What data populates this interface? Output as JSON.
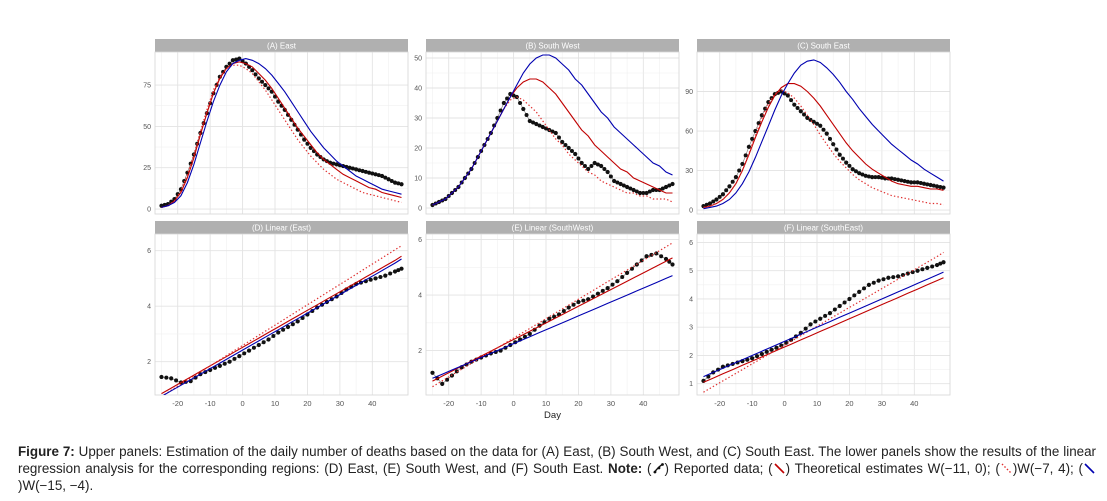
{
  "figure": {
    "x_axis_title": "Day",
    "x_ticks": [
      -20,
      -10,
      0,
      10,
      20,
      30,
      40
    ],
    "colors": {
      "observed": "#111111",
      "w_a": "#c00000",
      "w_b": "#e03030",
      "w_c": "#0000b0",
      "strip": "#b0b0b0",
      "grid": "#e3e3e3"
    }
  },
  "chart_data": [
    {
      "type": "line",
      "panel": "A",
      "title": "(A) East",
      "xlim": [
        -27,
        51
      ],
      "ylim": [
        -3,
        95
      ],
      "yticks": [
        0,
        25,
        50,
        75
      ],
      "x": [
        -25,
        -23,
        -21,
        -19,
        -17,
        -15,
        -13,
        -11,
        -9,
        -7,
        -5,
        -3,
        -1,
        1,
        3,
        5,
        7,
        9,
        11,
        13,
        15,
        17,
        19,
        21,
        23,
        25,
        27,
        29,
        31,
        33,
        35,
        37,
        39,
        41,
        43,
        45,
        47,
        49
      ],
      "series": [
        {
          "role": "observed",
          "values": [
            2,
            3,
            6,
            12,
            22,
            33,
            46,
            58,
            70,
            80,
            86,
            90,
            91,
            88,
            84,
            79,
            75,
            71,
            65,
            60,
            54,
            48,
            42,
            37,
            33,
            30,
            28,
            27,
            26,
            25,
            24,
            23,
            22,
            21,
            20,
            18,
            16,
            15
          ]
        },
        {
          "role": "w_a",
          "values": [
            1,
            2,
            5,
            10,
            19,
            31,
            45,
            58,
            70,
            79,
            85,
            88,
            89,
            88,
            86,
            82,
            78,
            73,
            67,
            61,
            55,
            49,
            44,
            39,
            34,
            30,
            27,
            24,
            21,
            19,
            17,
            15,
            13,
            12,
            10,
            9,
            8,
            7
          ]
        },
        {
          "role": "w_b",
          "values": [
            1,
            2,
            5,
            11,
            21,
            33,
            47,
            60,
            72,
            80,
            85,
            87,
            87,
            85,
            82,
            77,
            72,
            66,
            60,
            54,
            48,
            42,
            37,
            32,
            28,
            24,
            21,
            18,
            16,
            14,
            12,
            10,
            9,
            8,
            7,
            6,
            5,
            4
          ]
        },
        {
          "role": "w_c",
          "values": [
            1,
            2,
            4,
            8,
            16,
            27,
            40,
            53,
            65,
            75,
            83,
            88,
            90,
            91,
            90,
            88,
            85,
            81,
            76,
            71,
            65,
            59,
            53,
            47,
            42,
            37,
            33,
            29,
            26,
            23,
            20,
            18,
            16,
            14,
            12,
            11,
            10,
            9
          ]
        }
      ]
    },
    {
      "type": "line",
      "panel": "B",
      "title": "(B) South West",
      "xlim": [
        -27,
        51
      ],
      "ylim": [
        -2,
        52
      ],
      "yticks": [
        0,
        10,
        20,
        30,
        40,
        50
      ],
      "x": [
        -25,
        -23,
        -21,
        -19,
        -17,
        -15,
        -13,
        -11,
        -9,
        -7,
        -5,
        -3,
        -1,
        1,
        3,
        5,
        7,
        9,
        11,
        13,
        15,
        17,
        19,
        21,
        23,
        25,
        27,
        29,
        31,
        33,
        35,
        37,
        39,
        41,
        43,
        45,
        47,
        49
      ],
      "series": [
        {
          "role": "observed",
          "values": [
            1,
            2,
            3,
            5,
            7,
            10,
            13,
            17,
            21,
            25,
            30,
            35,
            38,
            37,
            33,
            29,
            28,
            27,
            26,
            25,
            22,
            20,
            18,
            15,
            13,
            15,
            14,
            12,
            9,
            8,
            7,
            6,
            5,
            5,
            6,
            6,
            7,
            8
          ]
        },
        {
          "role": "w_a",
          "values": [
            1,
            2,
            3,
            5,
            7,
            10,
            13,
            17,
            21,
            25,
            29,
            33,
            37,
            40,
            42,
            43,
            43,
            42,
            40,
            38,
            35,
            32,
            29,
            26,
            24,
            21,
            19,
            17,
            15,
            13,
            12,
            10,
            9,
            8,
            7,
            6,
            5,
            5
          ]
        },
        {
          "role": "w_b",
          "values": [
            1,
            2,
            3,
            5,
            7,
            10,
            13,
            17,
            21,
            25,
            29,
            33,
            36,
            37,
            36,
            34,
            32,
            29,
            26,
            23,
            21,
            18,
            16,
            14,
            12,
            11,
            9,
            8,
            7,
            6,
            5,
            5,
            4,
            4,
            3,
            3,
            3,
            2
          ]
        },
        {
          "role": "w_c",
          "values": [
            1,
            2,
            3,
            5,
            7,
            10,
            13,
            17,
            21,
            25,
            29,
            33,
            37,
            41,
            45,
            48,
            50,
            51,
            51,
            50,
            48,
            46,
            43,
            41,
            38,
            35,
            32,
            30,
            27,
            25,
            23,
            21,
            19,
            17,
            15,
            14,
            12,
            11
          ]
        }
      ]
    },
    {
      "type": "line",
      "panel": "C",
      "title": "(C) South East",
      "xlim": [
        -27,
        51
      ],
      "ylim": [
        -3,
        120
      ],
      "yticks": [
        0,
        30,
        60,
        90
      ],
      "x": [
        -25,
        -23,
        -21,
        -19,
        -17,
        -15,
        -13,
        -11,
        -9,
        -7,
        -5,
        -3,
        -1,
        1,
        3,
        5,
        7,
        9,
        11,
        13,
        15,
        17,
        19,
        21,
        23,
        25,
        27,
        29,
        31,
        33,
        35,
        37,
        39,
        41,
        43,
        45,
        47,
        49
      ],
      "series": [
        {
          "role": "observed",
          "values": [
            3,
            5,
            8,
            12,
            18,
            25,
            35,
            48,
            60,
            72,
            82,
            88,
            90,
            87,
            80,
            75,
            70,
            67,
            64,
            58,
            50,
            42,
            36,
            31,
            28,
            26,
            25,
            25,
            24,
            24,
            23,
            22,
            21,
            21,
            20,
            19,
            18,
            17
          ]
        },
        {
          "role": "w_a",
          "values": [
            2,
            3,
            5,
            8,
            13,
            20,
            30,
            42,
            55,
            67,
            78,
            87,
            93,
            96,
            96,
            94,
            90,
            85,
            79,
            72,
            65,
            58,
            51,
            45,
            40,
            35,
            31,
            28,
            25,
            22,
            20,
            19,
            18,
            18,
            17,
            16,
            16,
            15
          ]
        },
        {
          "role": "w_b",
          "values": [
            2,
            3,
            5,
            8,
            13,
            20,
            30,
            43,
            57,
            70,
            81,
            88,
            91,
            89,
            85,
            79,
            72,
            65,
            57,
            50,
            43,
            37,
            32,
            27,
            23,
            20,
            17,
            15,
            13,
            11,
            10,
            9,
            8,
            7,
            6,
            5,
            5,
            4
          ]
        },
        {
          "role": "w_c",
          "values": [
            1,
            2,
            3,
            5,
            8,
            13,
            20,
            29,
            40,
            52,
            64,
            76,
            87,
            96,
            104,
            110,
            113,
            114,
            112,
            108,
            103,
            97,
            90,
            84,
            77,
            71,
            65,
            60,
            55,
            50,
            46,
            42,
            38,
            35,
            31,
            28,
            25,
            22
          ]
        }
      ]
    },
    {
      "type": "line",
      "panel": "D",
      "title": "(D) Linear (East)",
      "xlim": [
        -27,
        51
      ],
      "ylim": [
        0.8,
        6.6
      ],
      "yticks": [
        2,
        4,
        6
      ],
      "x": [
        -25,
        -22,
        -19,
        -16,
        -13,
        -10,
        -7,
        -4,
        -1,
        2,
        5,
        8,
        11,
        14,
        17,
        20,
        23,
        26,
        29,
        32,
        35,
        38,
        41,
        44,
        47,
        49
      ],
      "series": [
        {
          "role": "observed",
          "values": [
            1.45,
            1.4,
            1.25,
            1.3,
            1.55,
            1.7,
            1.85,
            2.0,
            2.2,
            2.4,
            2.6,
            2.8,
            3.05,
            3.25,
            3.45,
            3.7,
            3.95,
            4.15,
            4.35,
            4.6,
            4.8,
            4.9,
            5.0,
            5.1,
            5.25,
            5.35
          ]
        },
        {
          "role": "w_a",
          "values": [
            0.85,
            1.05,
            1.25,
            1.45,
            1.65,
            1.85,
            2.05,
            2.25,
            2.45,
            2.65,
            2.85,
            3.05,
            3.25,
            3.45,
            3.65,
            3.85,
            4.05,
            4.25,
            4.45,
            4.65,
            4.85,
            5.05,
            5.25,
            5.45,
            5.65,
            5.8
          ]
        },
        {
          "role": "w_b",
          "values": [
            0.75,
            0.97,
            1.19,
            1.41,
            1.63,
            1.85,
            2.07,
            2.29,
            2.51,
            2.73,
            2.95,
            3.17,
            3.39,
            3.61,
            3.83,
            4.05,
            4.27,
            4.49,
            4.71,
            4.93,
            5.15,
            5.37,
            5.59,
            5.81,
            6.03,
            6.18
          ]
        },
        {
          "role": "w_c",
          "values": [
            0.75,
            0.95,
            1.15,
            1.35,
            1.55,
            1.75,
            1.95,
            2.15,
            2.35,
            2.55,
            2.75,
            2.95,
            3.15,
            3.35,
            3.55,
            3.75,
            3.95,
            4.15,
            4.35,
            4.55,
            4.75,
            4.95,
            5.15,
            5.35,
            5.55,
            5.7
          ]
        }
      ]
    },
    {
      "type": "line",
      "panel": "E",
      "title": "(E) Linear (SouthWest)",
      "xlim": [
        -27,
        51
      ],
      "ylim": [
        0.4,
        6.2
      ],
      "yticks": [
        2,
        4,
        6
      ],
      "x": [
        -25,
        -22,
        -19,
        -16,
        -13,
        -10,
        -7,
        -4,
        -1,
        2,
        5,
        8,
        11,
        14,
        17,
        20,
        23,
        26,
        29,
        32,
        35,
        38,
        41,
        44,
        47,
        49
      ],
      "series": [
        {
          "role": "observed",
          "values": [
            1.2,
            0.8,
            1.1,
            1.4,
            1.6,
            1.75,
            1.9,
            2.0,
            2.2,
            2.4,
            2.6,
            2.9,
            3.15,
            3.3,
            3.55,
            3.75,
            3.85,
            4.05,
            4.25,
            4.5,
            4.8,
            5.1,
            5.4,
            5.5,
            5.3,
            5.1
          ]
        },
        {
          "role": "w_a",
          "values": [
            0.9,
            1.08,
            1.26,
            1.44,
            1.62,
            1.8,
            1.98,
            2.16,
            2.34,
            2.52,
            2.7,
            2.88,
            3.06,
            3.24,
            3.42,
            3.6,
            3.78,
            3.96,
            4.14,
            4.32,
            4.5,
            4.68,
            4.86,
            5.04,
            5.22,
            5.34
          ]
        },
        {
          "role": "w_b",
          "values": [
            0.7,
            0.91,
            1.12,
            1.33,
            1.54,
            1.75,
            1.96,
            2.17,
            2.38,
            2.59,
            2.8,
            3.01,
            3.22,
            3.43,
            3.64,
            3.85,
            4.06,
            4.27,
            4.48,
            4.69,
            4.9,
            5.11,
            5.32,
            5.53,
            5.74,
            5.88
          ]
        },
        {
          "role": "w_c",
          "values": [
            1.0,
            1.15,
            1.3,
            1.45,
            1.6,
            1.75,
            1.9,
            2.05,
            2.2,
            2.35,
            2.5,
            2.65,
            2.8,
            2.95,
            3.1,
            3.25,
            3.4,
            3.55,
            3.7,
            3.85,
            4.0,
            4.15,
            4.3,
            4.45,
            4.6,
            4.7
          ]
        }
      ]
    },
    {
      "type": "line",
      "panel": "F",
      "title": "(F) Linear (SouthEast)",
      "xlim": [
        -27,
        51
      ],
      "ylim": [
        0.6,
        6.3
      ],
      "yticks": [
        1,
        2,
        3,
        4,
        5,
        6
      ],
      "x": [
        -25,
        -22,
        -19,
        -16,
        -13,
        -10,
        -7,
        -4,
        -1,
        2,
        5,
        8,
        11,
        14,
        17,
        20,
        23,
        26,
        29,
        32,
        35,
        38,
        41,
        44,
        47,
        49
      ],
      "series": [
        {
          "role": "observed",
          "values": [
            1.1,
            1.4,
            1.6,
            1.7,
            1.8,
            1.9,
            2.05,
            2.2,
            2.35,
            2.55,
            2.8,
            3.1,
            3.3,
            3.5,
            3.75,
            4.0,
            4.25,
            4.5,
            4.65,
            4.75,
            4.8,
            4.9,
            5.0,
            5.1,
            5.2,
            5.3
          ]
        },
        {
          "role": "w_a",
          "values": [
            1.05,
            1.2,
            1.35,
            1.5,
            1.65,
            1.8,
            1.95,
            2.1,
            2.25,
            2.4,
            2.55,
            2.7,
            2.85,
            3.0,
            3.15,
            3.3,
            3.45,
            3.6,
            3.75,
            3.9,
            4.05,
            4.2,
            4.35,
            4.5,
            4.65,
            4.75
          ]
        },
        {
          "role": "w_b",
          "values": [
            0.7,
            0.9,
            1.1,
            1.3,
            1.5,
            1.7,
            1.9,
            2.1,
            2.3,
            2.5,
            2.7,
            2.9,
            3.1,
            3.3,
            3.5,
            3.7,
            3.9,
            4.1,
            4.3,
            4.5,
            4.7,
            4.9,
            5.1,
            5.3,
            5.5,
            5.65
          ]
        },
        {
          "role": "w_c",
          "values": [
            1.25,
            1.4,
            1.55,
            1.7,
            1.85,
            2.0,
            2.15,
            2.3,
            2.45,
            2.6,
            2.75,
            2.9,
            3.05,
            3.2,
            3.35,
            3.5,
            3.65,
            3.8,
            3.95,
            4.1,
            4.25,
            4.4,
            4.55,
            4.7,
            4.85,
            4.95
          ]
        }
      ]
    }
  ],
  "caption": {
    "label": "Figure 7:",
    "text1": " Upper panels: Estimation of the daily number of deaths based on the data for (A) East, (B) South West, and (C) South East. The lower panels show the results of the linear regression analysis for the corresponding regions: (D) East, (E) South West, and (F) South East. ",
    "note_label": "Note:",
    "text2": " (",
    "text3": ") Reported data; (",
    "text4": ") Theoretical estimates W(−11, 0); (",
    "text5": ")W(−7, 4); (",
    "text6": ")W(−15, −4)."
  }
}
